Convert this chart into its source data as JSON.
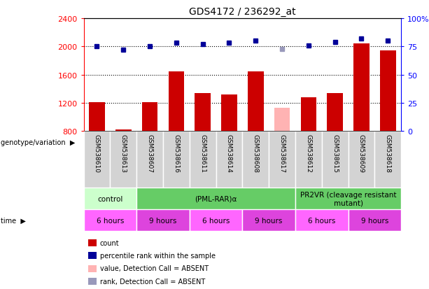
{
  "title": "GDS4172 / 236292_at",
  "samples": [
    "GSM538610",
    "GSM538613",
    "GSM538607",
    "GSM538616",
    "GSM538611",
    "GSM538614",
    "GSM538608",
    "GSM538617",
    "GSM538612",
    "GSM538615",
    "GSM538609",
    "GSM538618"
  ],
  "counts": [
    1210,
    820,
    1210,
    1650,
    1340,
    1320,
    1650,
    1130,
    1280,
    1340,
    2040,
    1940
  ],
  "percentile_ranks": [
    75,
    72,
    75,
    78,
    77,
    78,
    80,
    73,
    76,
    79,
    82,
    80
  ],
  "count_absent": [
    false,
    false,
    false,
    false,
    false,
    false,
    false,
    true,
    false,
    false,
    false,
    false
  ],
  "rank_absent": [
    false,
    false,
    false,
    false,
    false,
    false,
    false,
    true,
    false,
    false,
    false,
    false
  ],
  "ylim_left": [
    800,
    2400
  ],
  "ylim_right": [
    0,
    100
  ],
  "yticks_left": [
    800,
    1200,
    1600,
    2000,
    2400
  ],
  "yticks_right": [
    0,
    25,
    50,
    75,
    100
  ],
  "bar_color_normal": "#cc0000",
  "bar_color_absent": "#ffb3b3",
  "rank_color_normal": "#000099",
  "rank_color_absent": "#9999bb",
  "genotype_groups": [
    {
      "label": "control",
      "start": 0,
      "end": 2,
      "color": "#ccffcc"
    },
    {
      "label": "(PML-RAR)α",
      "start": 2,
      "end": 8,
      "color": "#66cc66"
    },
    {
      "label": "PR2VR (cleavage resistant\nmutant)",
      "start": 8,
      "end": 12,
      "color": "#66cc66"
    }
  ],
  "time_groups": [
    {
      "label": "6 hours",
      "start": 0,
      "end": 2,
      "color": "#ff66ff"
    },
    {
      "label": "9 hours",
      "start": 2,
      "end": 4,
      "color": "#dd44dd"
    },
    {
      "label": "6 hours",
      "start": 4,
      "end": 6,
      "color": "#ff66ff"
    },
    {
      "label": "9 hours",
      "start": 6,
      "end": 8,
      "color": "#dd44dd"
    },
    {
      "label": "6 hours",
      "start": 8,
      "end": 10,
      "color": "#ff66ff"
    },
    {
      "label": "9 hours",
      "start": 10,
      "end": 12,
      "color": "#dd44dd"
    }
  ],
  "legend_items": [
    {
      "label": "count",
      "color": "#cc0000"
    },
    {
      "label": "percentile rank within the sample",
      "color": "#000099"
    },
    {
      "label": "value, Detection Call = ABSENT",
      "color": "#ffb3b3"
    },
    {
      "label": "rank, Detection Call = ABSENT",
      "color": "#9999bb"
    }
  ],
  "bar_width": 0.6,
  "fig_width": 6.13,
  "fig_height": 4.14
}
